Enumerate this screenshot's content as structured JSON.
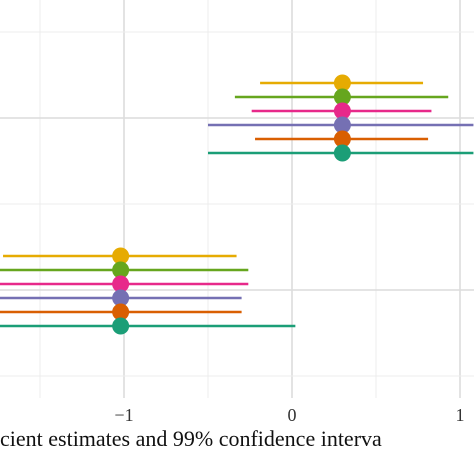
{
  "chart_data": {
    "type": "scatter",
    "subtype": "coefficient-forest-plot",
    "title": "",
    "xlabel": "cient estimates and 99% confidence interva",
    "ylabel": "",
    "x_ticks": [
      {
        "value": -1,
        "label": "−1"
      },
      {
        "value": 0,
        "label": "0"
      },
      {
        "value": 1,
        "label": "1"
      }
    ],
    "xlim": [
      -1.74,
      1.0
    ],
    "grid": true,
    "legend": "none",
    "colors": [
      "#e6ab02",
      "#66a61e",
      "#e7298a",
      "#7570b3",
      "#d95f02",
      "#1b9e77"
    ],
    "groups": [
      {
        "estimates": [
          {
            "estimate": 0.3,
            "low": -0.19,
            "high": 0.78
          },
          {
            "estimate": 0.3,
            "low": -0.34,
            "high": 0.93
          },
          {
            "estimate": 0.3,
            "low": -0.24,
            "high": 0.83
          },
          {
            "estimate": 0.3,
            "low": -0.5,
            "high": 1.08
          },
          {
            "estimate": 0.3,
            "low": -0.22,
            "high": 0.81
          },
          {
            "estimate": 0.3,
            "low": -0.5,
            "high": 1.08
          }
        ]
      },
      {
        "estimates": [
          {
            "estimate": -1.02,
            "low": -1.72,
            "high": -0.33
          },
          {
            "estimate": -1.02,
            "low": -1.8,
            "high": -0.26
          },
          {
            "estimate": -1.02,
            "low": -1.8,
            "high": -0.26
          },
          {
            "estimate": -1.02,
            "low": -1.8,
            "high": -0.3
          },
          {
            "estimate": -1.02,
            "low": -1.8,
            "high": -0.3
          },
          {
            "estimate": -1.02,
            "low": -1.8,
            "high": 0.02
          }
        ]
      }
    ]
  }
}
